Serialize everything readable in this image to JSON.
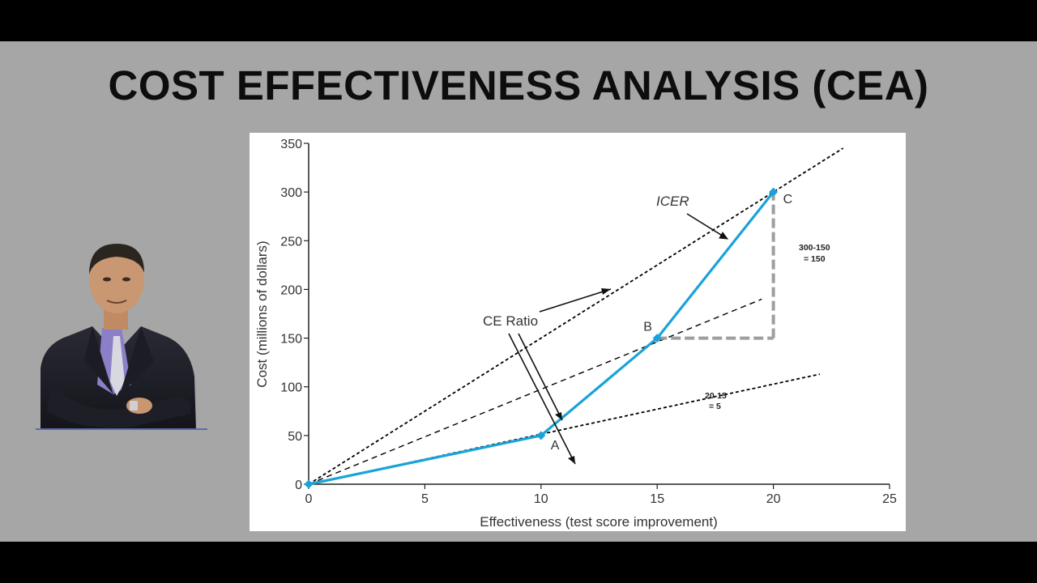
{
  "slide": {
    "title": "COST EFFECTIVENESS ANALYSIS (CEA)"
  },
  "presenter": {
    "icon": "presenter-photo"
  },
  "colors": {
    "background": "#a6a6a6",
    "frame": "#000000",
    "series_line": "#1aa3d9",
    "ratio_lines": "#000000",
    "delta_lines": "#9e9e9e"
  },
  "chart_data": {
    "type": "line",
    "title": "",
    "xlabel": "Effectiveness (test score improvement)",
    "ylabel": "Cost (millions of dollars)",
    "xlim": [
      0,
      25
    ],
    "ylim": [
      0,
      350
    ],
    "x_ticks": [
      0,
      5,
      10,
      15,
      20,
      25
    ],
    "y_ticks": [
      0,
      50,
      100,
      150,
      200,
      250,
      300,
      350
    ],
    "grid": false,
    "series": [
      {
        "points": [
          {
            "x": 0,
            "y": 0
          },
          {
            "x": 10,
            "y": 50
          },
          {
            "x": 15,
            "y": 150
          },
          {
            "x": 20,
            "y": 300
          }
        ]
      }
    ],
    "point_labels": [
      {
        "label": "A",
        "x": 10,
        "y": 50
      },
      {
        "label": "B",
        "x": 15,
        "y": 150
      },
      {
        "label": "C",
        "x": 20,
        "y": 300
      }
    ],
    "ratio_lines": [
      {
        "from": [
          0,
          0
        ],
        "to": [
          23,
          345
        ]
      },
      {
        "from": [
          0,
          0
        ],
        "to": [
          19.5,
          190
        ]
      },
      {
        "from": [
          0,
          0
        ],
        "to": [
          22,
          113
        ]
      }
    ],
    "delta_lines": [
      {
        "from": [
          15,
          150
        ],
        "to": [
          20,
          150
        ]
      },
      {
        "from": [
          20,
          150
        ],
        "to": [
          20,
          300
        ]
      }
    ],
    "annotations": {
      "icer": "ICER",
      "ce_ratio": "CE Ratio",
      "dy_line1": "300-150",
      "dy_line2": "= 150",
      "dx_line1": "20-15",
      "dx_line2": "= 5"
    }
  }
}
